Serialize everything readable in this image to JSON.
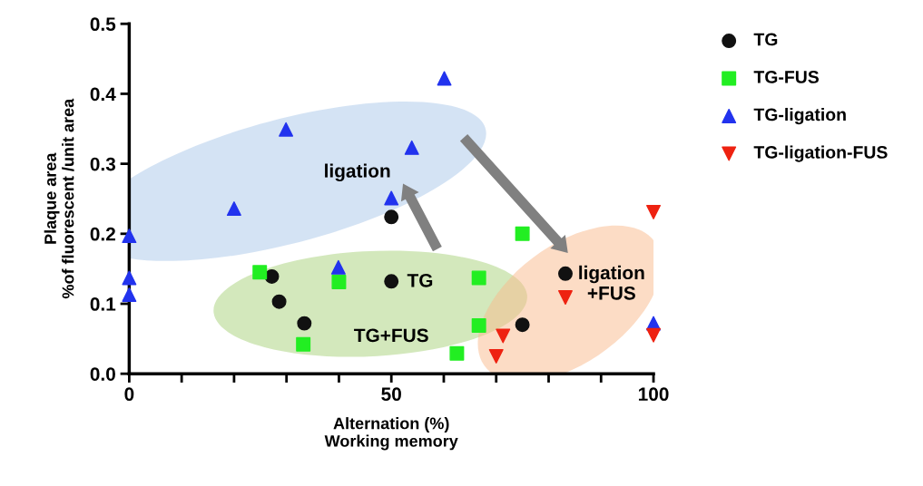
{
  "chart_data": {
    "type": "scatter",
    "xlabel": "Alternation (%)\nWorking memory",
    "ylabel": "Plaque area\n%of fluorescent /unit area",
    "xlim": [
      0,
      100
    ],
    "ylim": [
      0,
      0.5
    ],
    "xticks": [
      0,
      {
        "value": 10,
        "label": null
      },
      {
        "value": 20,
        "label": null
      },
      {
        "value": 30,
        "label": null
      },
      {
        "value": 40,
        "label": null
      },
      50,
      {
        "value": 60,
        "label": null
      },
      {
        "value": 70,
        "label": null
      },
      {
        "value": 80,
        "label": null
      },
      {
        "value": 90,
        "label": null
      },
      100
    ],
    "yticks": [
      {
        "value": 0,
        "label": "0.0"
      },
      0.1,
      0.2,
      0.3,
      0.4,
      0.5
    ],
    "grid": false,
    "legend": "top right",
    "series": [
      {
        "name": "TG",
        "color": "#111111",
        "marker": "circle",
        "x": [
          27.2,
          28.6,
          33.4,
          50,
          50,
          83.2,
          75
        ],
        "values": [
          0.139,
          0.103,
          0.072,
          0.224,
          0.132,
          0.143,
          0.07
        ]
      },
      {
        "name": "TG-FUS",
        "color": "#22ee22",
        "marker": "square",
        "x": [
          24.9,
          40,
          33.2,
          75,
          66.7,
          66.7,
          62.5
        ],
        "values": [
          0.145,
          0.131,
          0.042,
          0.2,
          0.137,
          0.069,
          0.029
        ]
      },
      {
        "name": "TG-ligation",
        "color": "#2233ee",
        "marker": "triangle",
        "x": [
          0,
          0,
          0,
          20,
          29.9,
          53.9,
          60.1,
          50,
          39.9,
          100
        ],
        "values": [
          0.197,
          0.137,
          0.113,
          0.236,
          0.349,
          0.323,
          0.422,
          0.251,
          0.152,
          0.072
        ]
      },
      {
        "name": "TG-ligation-FUS",
        "color": "#ee2211",
        "marker": "triangle_down",
        "x": [
          100,
          83.2,
          71.3,
          70,
          100
        ],
        "values": [
          0.231,
          0.109,
          0.054,
          0.025,
          0.055
        ]
      }
    ],
    "annotations": [
      "ligation",
      "TG",
      "TG+FUS",
      "ligation\n+FUS"
    ]
  }
}
